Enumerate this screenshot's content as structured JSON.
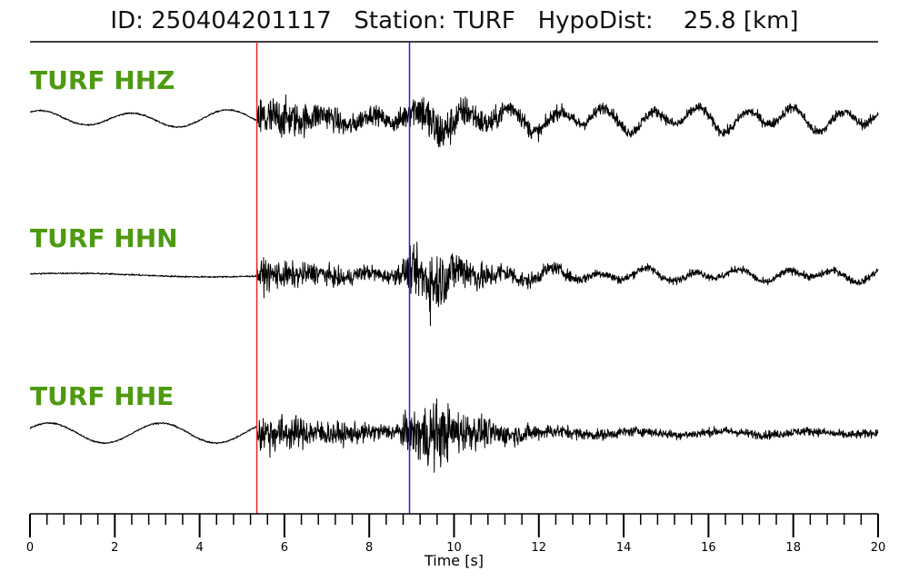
{
  "title": "ID: 250404201117   Station: TURF   HypoDist:    25.8 [km]",
  "channels": [
    {
      "label": "TURF HHZ"
    },
    {
      "label": "TURF HHN"
    },
    {
      "label": "TURF HHE"
    }
  ],
  "chart_data": {
    "type": "line",
    "title": "ID: 250404201117   Station: TURF   HypoDist:    25.8 [km]",
    "xlabel": "Time [s]",
    "ylabel": "",
    "xlim": [
      0,
      20
    ],
    "x_ticks": [
      0,
      2,
      4,
      6,
      8,
      10,
      12,
      14,
      16,
      18,
      20
    ],
    "x_minor_step": 0.4,
    "grid": false,
    "series": [
      {
        "name": "TURF HHZ",
        "color": "#000000"
      },
      {
        "name": "TURF HHN",
        "color": "#000000"
      },
      {
        "name": "TURF HHE",
        "color": "#000000"
      }
    ],
    "markers": [
      {
        "time": 5.35,
        "color": "#e8211f"
      },
      {
        "time": 8.95,
        "color": "#2222dd"
      }
    ],
    "colors": {
      "label": "#4d9a10",
      "p_pick": "#e8211f",
      "s_pick": "#2222dd",
      "trace": "#000000"
    }
  }
}
